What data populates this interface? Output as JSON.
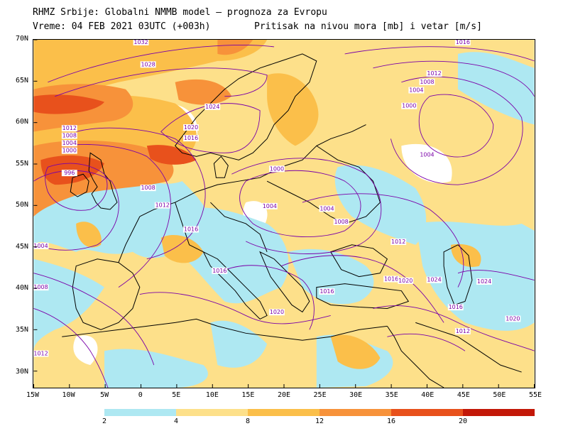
{
  "header": {
    "line1": "RHMZ Srbije: Globalni NMMB model — prognoza za Evropu",
    "line2": "Vreme: 04 FEB 2021 03UTC (+003h)",
    "line3": "Pritisak na nivou mora [mb] i vetar [m/s]"
  },
  "axes": {
    "lat_labels": [
      "70N",
      "65N",
      "60N",
      "55N",
      "50N",
      "45N",
      "40N",
      "35N",
      "30N"
    ],
    "lon_labels": [
      "15W",
      "10W",
      "5W",
      "0",
      "5E",
      "10E",
      "15E",
      "20E",
      "25E",
      "30E",
      "35E",
      "40E",
      "45E",
      "50E",
      "55E"
    ]
  },
  "colorbar": {
    "labels": [
      "2",
      "4",
      "8",
      "12",
      "16",
      "20"
    ],
    "colors": [
      "#aee8f2",
      "#fde08a",
      "#fbbf4a",
      "#f7923a",
      "#e8511c",
      "#c31808"
    ]
  },
  "isobar_labels": [
    {
      "text": "1032",
      "lon": 0,
      "lat": 69.5
    },
    {
      "text": "1028",
      "lon": 1,
      "lat": 66.8
    },
    {
      "text": "1024",
      "lon": 10,
      "lat": 61.7
    },
    {
      "text": "1020",
      "lon": 7,
      "lat": 59.2
    },
    {
      "text": "1016",
      "lon": 7,
      "lat": 57.9
    },
    {
      "text": "1012",
      "lon": -10,
      "lat": 59.1
    },
    {
      "text": "1008",
      "lon": -10,
      "lat": 58.2
    },
    {
      "text": "1004",
      "lon": -10,
      "lat": 57.3
    },
    {
      "text": "1000",
      "lon": -10,
      "lat": 56.4
    },
    {
      "text": "996",
      "lon": -10,
      "lat": 53.7
    },
    {
      "text": "1008",
      "lon": 1,
      "lat": 51.9
    },
    {
      "text": "1012",
      "lon": 3,
      "lat": 49.8
    },
    {
      "text": "1016",
      "lon": 7,
      "lat": 46.9
    },
    {
      "text": "1016",
      "lon": 11,
      "lat": 41.9
    },
    {
      "text": "1004",
      "lon": -14,
      "lat": 44.9
    },
    {
      "text": "1008",
      "lon": -14,
      "lat": 39.9
    },
    {
      "text": "1012",
      "lon": -14,
      "lat": 31.9
    },
    {
      "text": "1000",
      "lon": 19,
      "lat": 54.2
    },
    {
      "text": "1004",
      "lon": 18,
      "lat": 49.7
    },
    {
      "text": "1004",
      "lon": 26,
      "lat": 49.4
    },
    {
      "text": "1008",
      "lon": 28,
      "lat": 47.8
    },
    {
      "text": "1012",
      "lon": 36,
      "lat": 45.4
    },
    {
      "text": "1016",
      "lon": 35,
      "lat": 40.9
    },
    {
      "text": "1020",
      "lon": 19,
      "lat": 36.9
    },
    {
      "text": "1016",
      "lon": 26,
      "lat": 39.4
    },
    {
      "text": "1016",
      "lon": 44,
      "lat": 37.5
    },
    {
      "text": "1012",
      "lon": 45,
      "lat": 34.6
    },
    {
      "text": "1020",
      "lon": 52,
      "lat": 36.1
    },
    {
      "text": "1020",
      "lon": 37,
      "lat": 40.7
    },
    {
      "text": "1024",
      "lon": 41,
      "lat": 40.8
    },
    {
      "text": "1016",
      "lon": 45,
      "lat": 69.5
    },
    {
      "text": "1012",
      "lon": 41,
      "lat": 65.7
    },
    {
      "text": "1008",
      "lon": 40,
      "lat": 64.7
    },
    {
      "text": "1004",
      "lon": 38.5,
      "lat": 63.7
    },
    {
      "text": "1000",
      "lon": 37.5,
      "lat": 61.8
    },
    {
      "text": "1004",
      "lon": 40,
      "lat": 55.9
    },
    {
      "text": "1024",
      "lon": 48,
      "lat": 40.6
    }
  ]
}
